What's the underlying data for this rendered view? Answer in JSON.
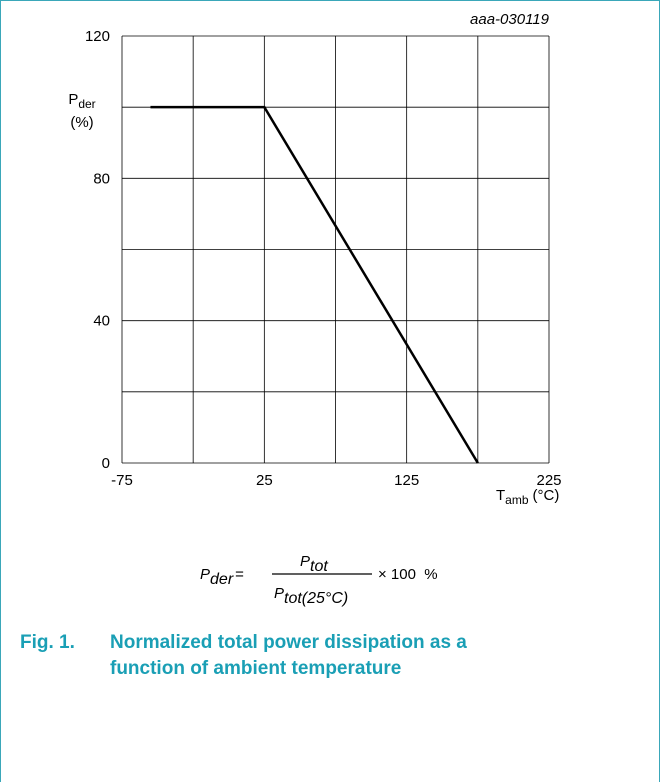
{
  "chart_data": {
    "type": "line",
    "code": "aaa-030119",
    "y_label": {
      "main": "P",
      "sub": "der",
      "unit": "(%)"
    },
    "x_label": {
      "main": "T",
      "sub": "amb",
      "unit": "(°C)"
    },
    "x": [
      -55,
      25,
      175
    ],
    "values": [
      100,
      100,
      0
    ],
    "color": "#000000",
    "xlim": [
      -75,
      225
    ],
    "xticks": [
      -75,
      25,
      125,
      225
    ],
    "ylim": [
      0,
      120
    ],
    "yticks": [
      0,
      40,
      80,
      120
    ],
    "xgrid": [
      -75,
      -25,
      25,
      75,
      125,
      175,
      225
    ],
    "ygrid": [
      0,
      20,
      40,
      60,
      80,
      100,
      120
    ],
    "grid": true
  },
  "formula": {
    "lhs": "P",
    "lhs_sub": "der",
    "eq": "=",
    "num": "P",
    "num_sub": "tot",
    "den": "P",
    "den_sub": "tot(25°C)",
    "rhs": "× 100  %"
  },
  "caption": {
    "label": "Fig. 1.",
    "lines": [
      "Normalized total power dissipation as a",
      "function of ambient temperature"
    ]
  }
}
